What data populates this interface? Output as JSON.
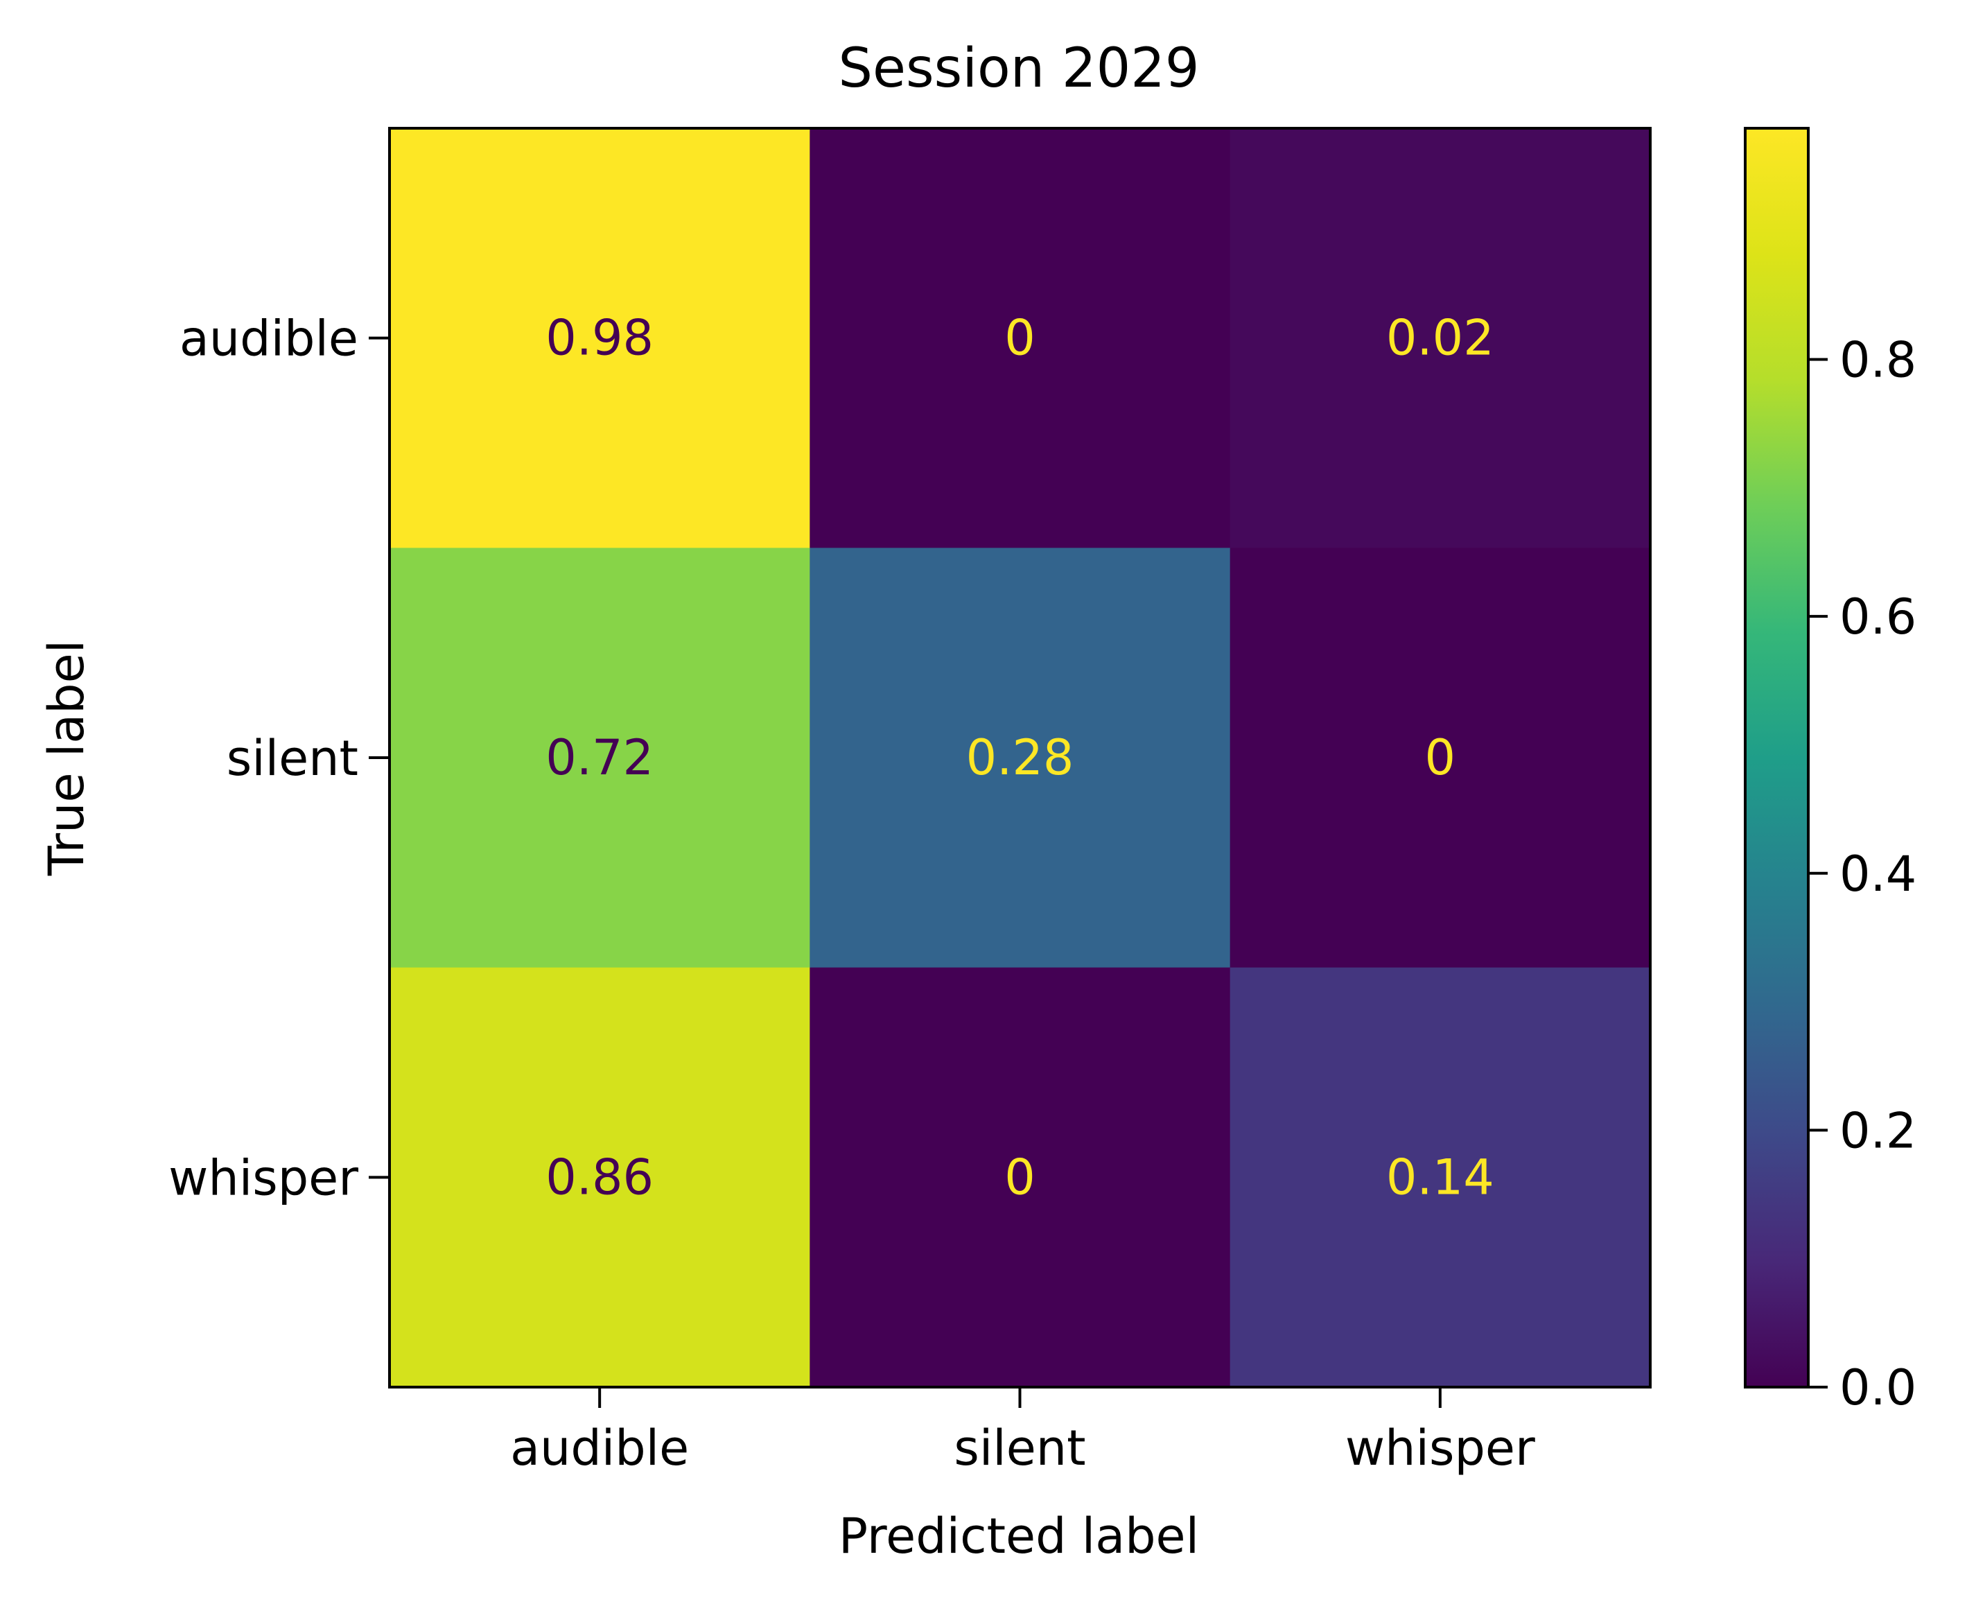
{
  "chart_data": {
    "type": "heatmap",
    "title": "Session 2029",
    "xlabel": "Predicted label",
    "ylabel": "True label",
    "x_categories": [
      "audible",
      "silent",
      "whisper"
    ],
    "y_categories": [
      "audible",
      "silent",
      "whisper"
    ],
    "values": [
      [
        0.98,
        0,
        0.02
      ],
      [
        0.72,
        0.28,
        0
      ],
      [
        0.86,
        0,
        0.14
      ]
    ],
    "cell_labels": [
      [
        "0.98",
        "0",
        "0.02"
      ],
      [
        "0.72",
        "0.28",
        "0"
      ],
      [
        "0.86",
        "0",
        "0.14"
      ]
    ],
    "colormap": "viridis",
    "colorbar": {
      "range": [
        0,
        0.98
      ],
      "ticks": [
        0.0,
        0.2,
        0.4,
        0.6,
        0.8
      ],
      "tick_labels": [
        "0.0",
        "0.2",
        "0.4",
        "0.6",
        "0.8"
      ]
    },
    "text_colors": {
      "dark_cell": "#fde725",
      "light_cell": "#440154"
    }
  }
}
